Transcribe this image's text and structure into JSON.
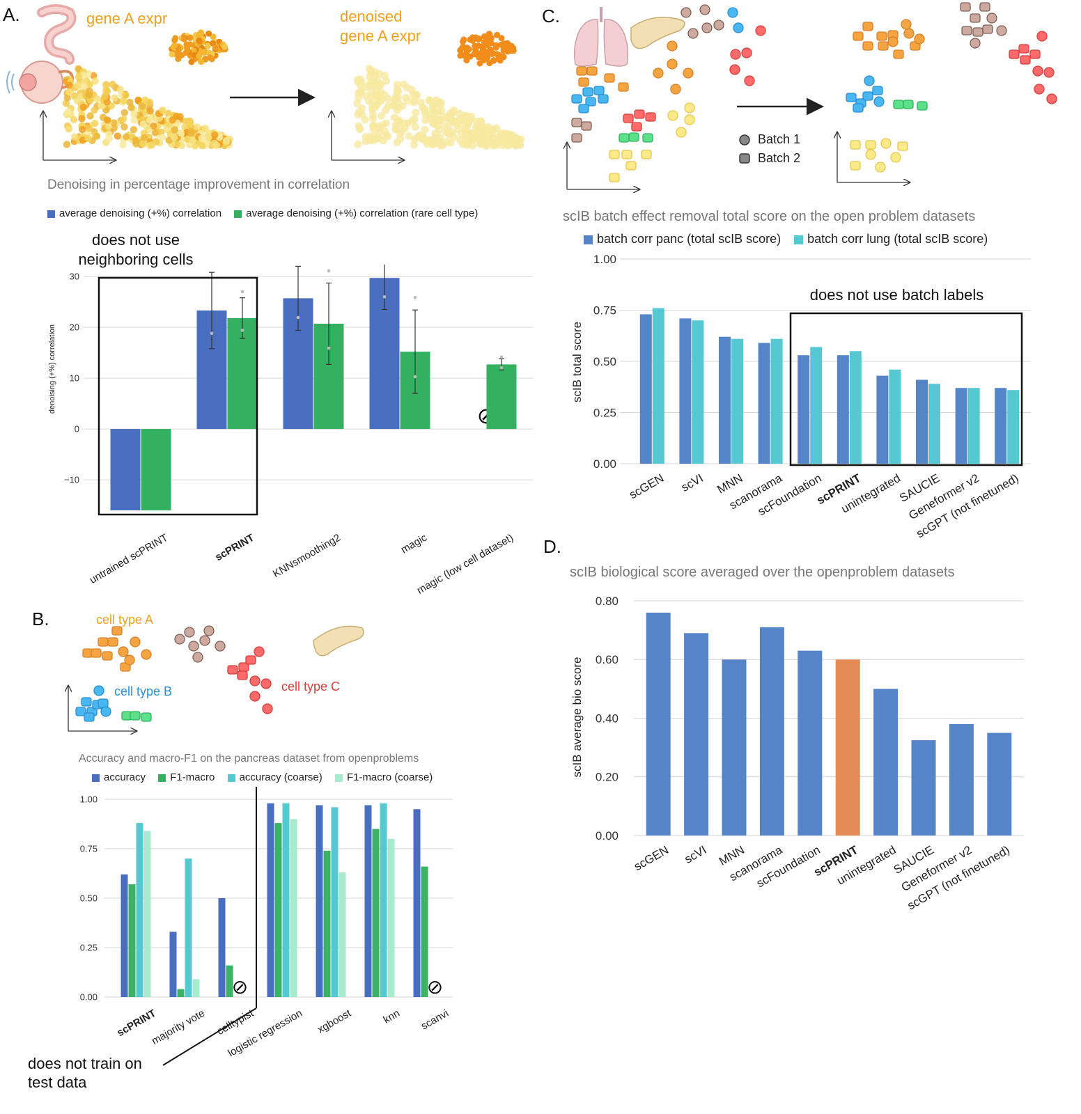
{
  "panels": {
    "a": {
      "label": "A.",
      "schematic": {
        "left_text": "gene A expr",
        "right_text_line1": "denoised",
        "right_text_line2": "gene A expr"
      },
      "header": "Denoising in percentage improvement in correlation",
      "annotation_line1": "does not use",
      "annotation_line2": "neighboring cells"
    },
    "b": {
      "label": "B.",
      "schematic": {
        "type_a": "cell type A",
        "type_b": "cell type B",
        "type_c": "cell type C"
      },
      "header": "Accuracy and macro-F1 on the pancreas dataset from openproblems",
      "annotation_line1": "does not train on",
      "annotation_line2": "test data"
    },
    "c": {
      "label": "C.",
      "schematic": {
        "batch1": "Batch 1",
        "batch2": "Batch 2"
      },
      "header": "scIB batch effect removal total score on the open problem datasets",
      "annotation": "does not use batch labels"
    },
    "d": {
      "label": "D.",
      "header": "scIB biological score averaged over the openproblem datasets"
    }
  },
  "colors": {
    "blue": "#4a6ebf",
    "green": "#33b060",
    "dblue": "#5585c8",
    "cyan": "#56c8d1",
    "lgreen": "#a6ead0",
    "orange": "#e48a59",
    "bgreen": "#3cb266"
  },
  "chart_data": [
    {
      "panel": "A",
      "type": "bar",
      "title": "Denoising in percentage improvement in correlation",
      "ylabel": "denoising (+%) correlation",
      "xlabel": "",
      "ylim": [
        -16,
        30
      ],
      "yticks": [
        30,
        20,
        10,
        0,
        -10
      ],
      "ytick_labels": [
        "30",
        "20",
        "10",
        "0",
        "−10"
      ],
      "grid": true,
      "legend_position": "top",
      "categories": [
        "untrained scPRINT",
        "scPRINT",
        "KNNsmoothing2",
        "magic",
        "magic (low cell dataset)"
      ],
      "bold_category": "scPRINT",
      "series": [
        {
          "name": "average denoising (+%) correlation",
          "values": [
            -16,
            23.3,
            25.7,
            29.7,
            null
          ],
          "err": [
            0,
            7.5,
            6.3,
            6.2,
            null
          ]
        },
        {
          "name": "average denoising (+%) correlation (rare cell type)",
          "values": [
            -16,
            21.8,
            20.7,
            15.2,
            12.7
          ],
          "err": [
            0,
            4,
            8,
            8.2,
            1.1
          ]
        }
      ],
      "not_applicable_symbol": "⊘"
    },
    {
      "panel": "B",
      "type": "bar",
      "title": "Accuracy and macro-F1 on the pancreas dataset from openproblems",
      "ylabel": "",
      "xlabel": "",
      "ylim": [
        0,
        1
      ],
      "yticks": [
        1.0,
        0.75,
        0.5,
        0.25,
        0.0
      ],
      "ytick_labels": [
        "1.00",
        "0.75",
        "0.50",
        "0.25",
        "0.00"
      ],
      "grid": true,
      "legend_position": "top",
      "categories": [
        "scPRINT",
        "majority vote",
        "celltypist",
        "logistic regression",
        "xgboost",
        "knn",
        "scanvi"
      ],
      "bold_category": "scPRINT",
      "series": [
        {
          "name": "accuracy",
          "values": [
            0.62,
            0.33,
            0.5,
            0.98,
            0.97,
            0.97,
            0.95
          ]
        },
        {
          "name": "F1-macro",
          "values": [
            0.57,
            0.04,
            0.16,
            0.88,
            0.74,
            0.85,
            0.66
          ]
        },
        {
          "name": "accuracy (coarse)",
          "values": [
            0.88,
            0.7,
            null,
            0.98,
            0.96,
            0.98,
            null
          ]
        },
        {
          "name": "F1-macro (coarse)",
          "values": [
            0.84,
            0.09,
            null,
            0.9,
            0.63,
            0.8,
            null
          ]
        }
      ],
      "not_applicable_symbol": "⊘"
    },
    {
      "panel": "C",
      "type": "bar",
      "title": "scIB batch effect removal total score on the open problem datasets",
      "ylabel": "scIB total score",
      "xlabel": "",
      "ylim": [
        0,
        1
      ],
      "yticks": [
        1.0,
        0.75,
        0.5,
        0.25,
        0.0
      ],
      "ytick_labels": [
        "1.00",
        "0.75",
        "0.50",
        "0.25",
        "0.00"
      ],
      "grid": true,
      "legend_position": "top",
      "categories": [
        "scGEN",
        "scVI",
        "MNN",
        "scanorama",
        "scFoundation",
        "scPRINT",
        "unintegrated",
        "SAUCIE",
        "Geneformer v2",
        "scGPT (not finetuned)"
      ],
      "bold_category": "scPRINT",
      "series": [
        {
          "name": "batch corr panc (total scIB score)",
          "values": [
            0.73,
            0.71,
            0.62,
            0.59,
            0.53,
            0.53,
            0.43,
            0.41,
            0.37,
            0.37
          ]
        },
        {
          "name": "batch corr lung (total scIB score)",
          "values": [
            0.76,
            0.7,
            0.61,
            0.61,
            0.57,
            0.55,
            0.46,
            0.39,
            0.37,
            0.36
          ]
        }
      ]
    },
    {
      "panel": "D",
      "type": "bar",
      "title": "scIB biological score averaged over the openproblem datasets",
      "ylabel": "scIB average bio score",
      "xlabel": "",
      "ylim": [
        0,
        0.8
      ],
      "yticks": [
        0.8,
        0.6,
        0.4,
        0.2,
        0.0
      ],
      "ytick_labels": [
        "0.80",
        "0.60",
        "0.40",
        "0.20",
        "0.00"
      ],
      "grid": true,
      "categories": [
        "scGEN",
        "scVI",
        "MNN",
        "scanorama",
        "scFoundation",
        "scPRINT",
        "unintegrated",
        "SAUCIE",
        "Geneformer v2",
        "scGPT (not finetuned)"
      ],
      "bold_category": "scPRINT",
      "highlight_category": "scPRINT",
      "values": [
        0.76,
        0.69,
        0.6,
        0.71,
        0.63,
        0.6,
        0.5,
        0.325,
        0.38,
        0.35
      ]
    }
  ]
}
